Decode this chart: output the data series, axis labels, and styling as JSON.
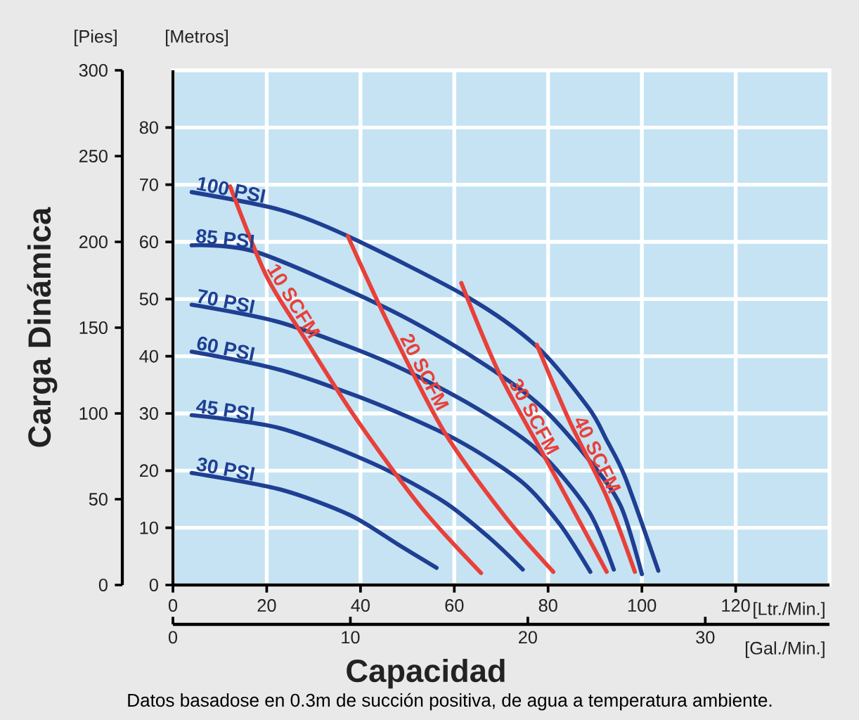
{
  "chart_data": {
    "type": "line",
    "xlabel": "Capacidad",
    "y2label": "Carga Dinámica",
    "x2label": "[Gal./Min.]",
    "xlim": [
      0,
      140
    ],
    "xticks": [
      0,
      20,
      40,
      60,
      80,
      100,
      120
    ],
    "ylim": [
      0,
      90
    ],
    "yticks": [
      0,
      10,
      20,
      30,
      40,
      50,
      60,
      70,
      80
    ],
    "y2lim": [
      0,
      300
    ],
    "y2ticks": [
      0,
      50,
      100,
      150,
      200,
      250,
      300
    ],
    "x2lim": [
      0,
      37
    ],
    "x2ticks": [
      0,
      10,
      20,
      30
    ],
    "grid": true,
    "line_style": "solid",
    "annotations": [
      "[Pies]",
      "[Metros]",
      "[Ltr./Min.]",
      "Datos basadose en 0.3m de succión positiva, de agua a temperatura ambiente."
    ],
    "series": [
      {
        "name": "100 PSI",
        "color": "#1f3f93",
        "x": [
          4,
          22.9,
          37.3,
          62.7,
          77.6,
          88.6,
          92.5,
          96.5,
          103.5
        ],
        "values": [
          68.7,
          65.6,
          61,
          50.4,
          41.7,
          31,
          25.3,
          18.7,
          2.5
        ]
      },
      {
        "name": "85 PSI",
        "color": "#1f3f93",
        "x": [
          4,
          17.9,
          44.8,
          62.7,
          77.6,
          88.6,
          95.5,
          100
        ],
        "values": [
          59.4,
          58.2,
          48.7,
          40.5,
          31.9,
          22,
          13.8,
          1.9
        ]
      },
      {
        "name": "70 PSI",
        "color": "#1f3f93",
        "x": [
          4,
          22.9,
          44.8,
          62.7,
          77.6,
          88.6,
          94
        ],
        "values": [
          49,
          45.9,
          39.3,
          31.9,
          23.7,
          13,
          2.7
        ]
      },
      {
        "name": "60 PSI",
        "color": "#1f3f93",
        "x": [
          4,
          22.9,
          42.8,
          60.7,
          74.6,
          82.6,
          89
        ],
        "values": [
          40.8,
          37.6,
          31.9,
          25.3,
          17.9,
          10.5,
          2.3
        ]
      },
      {
        "name": "45 PSI",
        "color": "#1f3f93",
        "x": [
          4,
          22.9,
          42.8,
          57.7,
          67.7,
          74.6
        ],
        "values": [
          29.7,
          27.4,
          21.2,
          14.6,
          8.1,
          2.7
        ]
      },
      {
        "name": "30 PSI",
        "color": "#1f3f93",
        "x": [
          4,
          22.9,
          37.8,
          47.8,
          56.2
        ],
        "values": [
          19.6,
          16.7,
          12.2,
          7.2,
          3
        ]
      },
      {
        "name": "10 SCFM",
        "color": "#e8403a",
        "x": [
          12.2,
          19.9,
          27.9,
          38.8,
          52.7,
          65.7
        ],
        "values": [
          69.7,
          54.1,
          43.4,
          29.4,
          13.8,
          2.1
        ]
      },
      {
        "name": "20 SCFM",
        "color": "#e8403a",
        "x": [
          37.3,
          45.8,
          57.7,
          70.6,
          81.1
        ],
        "values": [
          61,
          45.9,
          27,
          12.2,
          2.3
        ]
      },
      {
        "name": "30 SCFM",
        "color": "#e8403a",
        "x": [
          61.5,
          69.7,
          80.6,
          92.5
        ],
        "values": [
          52.8,
          36.8,
          20.4,
          2.3
        ]
      },
      {
        "name": "40 SCFM",
        "color": "#e8403a",
        "x": [
          77.6,
          84.6,
          92.5,
          98.5
        ],
        "values": [
          42,
          28.6,
          15.4,
          2.3
        ]
      }
    ]
  }
}
